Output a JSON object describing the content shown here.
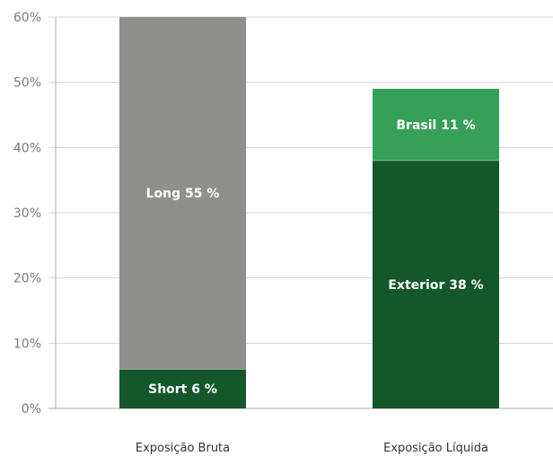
{
  "chart_data": {
    "type": "bar",
    "stacked": true,
    "title": "",
    "xlabel": "",
    "ylabel": "",
    "ylim": [
      0,
      60
    ],
    "yticks": [
      "0%",
      "10%",
      "20%",
      "30%",
      "40%",
      "50%",
      "60%"
    ],
    "grid": true,
    "categories": [
      "Exposição Bruta",
      "Exposição Líquida"
    ],
    "bars": [
      {
        "category": "Exposição Bruta",
        "segments": [
          {
            "label": "Short 6 %",
            "value": 6,
            "color": "#14572a"
          },
          {
            "label": "Long 55 %",
            "value": 55,
            "color": "#8f908e"
          }
        ]
      },
      {
        "category": "Exposição Líquida",
        "segments": [
          {
            "label": "Exterior 38 %",
            "value": 38,
            "color": "#14572a"
          },
          {
            "label": "Brasil 11 %",
            "value": 11,
            "color": "#36a058"
          }
        ]
      }
    ],
    "colors": {
      "grid": "#d4d4d4",
      "axis": "#a8a8a8"
    }
  }
}
